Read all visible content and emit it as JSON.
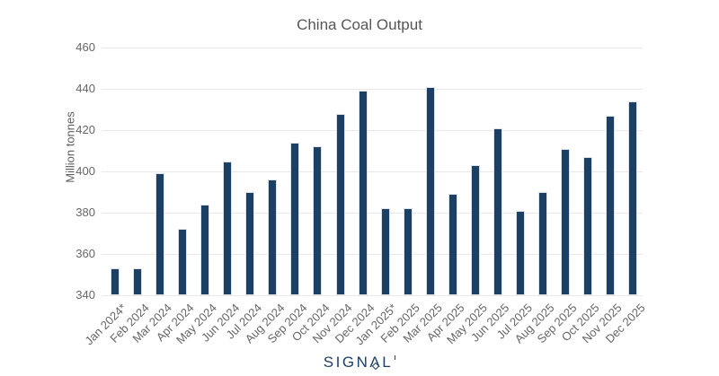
{
  "chart_data": {
    "type": "bar",
    "title": "China Coal Output",
    "ylabel": "Million tonnes",
    "xlabel": "",
    "ylim": [
      340,
      460
    ],
    "yticks": [
      340,
      360,
      380,
      400,
      420,
      440,
      460
    ],
    "grid": true,
    "legend": false,
    "bar_color": "#1b4064",
    "gridline_color": "#e8e8e8",
    "categories": [
      "Jan 2024*",
      "Feb 2024",
      "Mar 2024",
      "Apr 2024",
      "May 2024",
      "Jun 2024",
      "Jul 2024",
      "Aug 2024",
      "Sep 2024",
      "Oct 2024",
      "Nov 2024",
      "Dec 2024",
      "Jan 2025*",
      "Feb 2025",
      "Mar 2025",
      "Apr 2025",
      "May 2025",
      "Jun 2025",
      "Jul 2025",
      "Aug 2025",
      "Sep 2025",
      "Oct 2025",
      "Nov 2025",
      "Dec 2025"
    ],
    "values": [
      353,
      353,
      399,
      372,
      384,
      405,
      390,
      396,
      414,
      412,
      428,
      439,
      382,
      382,
      441,
      389,
      403,
      421,
      381,
      390,
      411,
      407,
      427,
      434
    ]
  },
  "footer": {
    "brand_pre": "SIGN",
    "brand_a": "Λ",
    "brand_post": "L"
  },
  "colors": {
    "title_text": "#565656",
    "axis_text": "#666666",
    "brand_navy": "#1e3f66"
  }
}
